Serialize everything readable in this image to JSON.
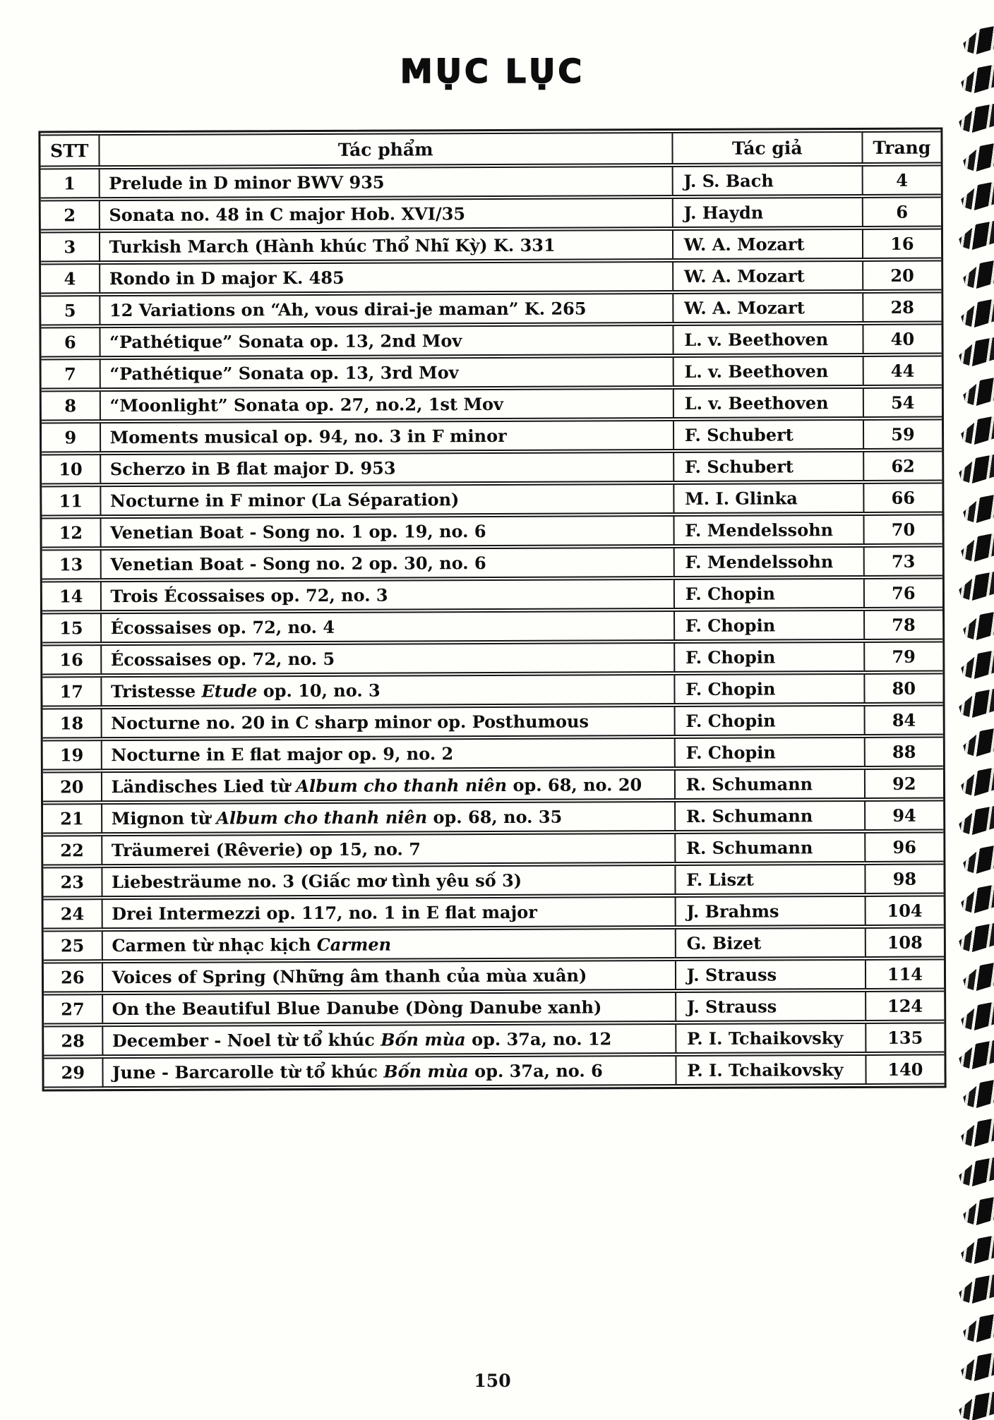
{
  "page": {
    "title": "MỤC LỤC",
    "folio": "150"
  },
  "table": {
    "headers": {
      "stt": "STT",
      "work": "Tác phẩm",
      "author": "Tác giả",
      "page": "Trang"
    },
    "rows": [
      {
        "stt": "1",
        "work": "Prelude in D minor BWV 935",
        "author": "J. S. Bach",
        "page": "4"
      },
      {
        "stt": "2",
        "work": "Sonata no. 48 in C major Hob. XVI/35",
        "author": "J. Haydn",
        "page": "6"
      },
      {
        "stt": "3",
        "work": "Turkish March (Hành khúc Thổ Nhĩ Kỳ) K. 331",
        "author": "W. A. Mozart",
        "page": "16"
      },
      {
        "stt": "4",
        "work": "Rondo in D major K. 485",
        "author": "W. A. Mozart",
        "page": "20"
      },
      {
        "stt": "5",
        "work": "12 Variations on “Ah, vous dirai-je maman” K. 265",
        "author": "W. A. Mozart",
        "page": "28"
      },
      {
        "stt": "6",
        "work": "“Pathétique” Sonata op. 13, 2nd Mov",
        "author": "L. v. Beethoven",
        "page": "40"
      },
      {
        "stt": "7",
        "work": "“Pathétique” Sonata op. 13, 3rd Mov",
        "author": "L. v. Beethoven",
        "page": "44"
      },
      {
        "stt": "8",
        "work": "“Moonlight” Sonata op. 27, no.2, 1st Mov",
        "author": "L. v. Beethoven",
        "page": "54"
      },
      {
        "stt": "9",
        "work": "Moments musical op. 94, no. 3 in F minor",
        "author": "F. Schubert",
        "page": "59"
      },
      {
        "stt": "10",
        "work": "Scherzo in B flat major D. 953",
        "author": "F. Schubert",
        "page": "62"
      },
      {
        "stt": "11",
        "work": "Nocturne in F minor (La Séparation)",
        "author": "M. I. Glinka",
        "page": "66"
      },
      {
        "stt": "12",
        "work": "Venetian Boat - Song no. 1 op. 19, no. 6",
        "author": "F. Mendelssohn",
        "page": "70"
      },
      {
        "stt": "13",
        "work": "Venetian Boat - Song no. 2 op. 30, no. 6",
        "author": "F. Mendelssohn",
        "page": "73"
      },
      {
        "stt": "14",
        "work": "Trois Écossaises op. 72, no. 3",
        "author": "F. Chopin",
        "page": "76"
      },
      {
        "stt": "15",
        "work": "Écossaises op. 72, no. 4",
        "author": "F. Chopin",
        "page": "78"
      },
      {
        "stt": "16",
        "work": "Écossaises op. 72, no. 5",
        "author": "F. Chopin",
        "page": "79"
      },
      {
        "stt": "17",
        "work": "Tristesse *Etude* op. 10, no. 3",
        "author": "F. Chopin",
        "page": "80"
      },
      {
        "stt": "18",
        "work": "Nocturne no. 20 in C sharp minor op. Posthumous",
        "author": "F. Chopin",
        "page": "84"
      },
      {
        "stt": "19",
        "work": "Nocturne in E flat major op. 9, no. 2",
        "author": "F. Chopin",
        "page": "88"
      },
      {
        "stt": "20",
        "work": "Ländisches Lied từ *Album cho thanh niên* op. 68, no. 20",
        "author": "R. Schumann",
        "page": "92"
      },
      {
        "stt": "21",
        "work": "Mignon từ *Album cho thanh niên* op. 68, no. 35",
        "author": "R. Schumann",
        "page": "94"
      },
      {
        "stt": "22",
        "work": "Träumerei (Rêverie) op 15, no. 7",
        "author": "R. Schumann",
        "page": "96"
      },
      {
        "stt": "23",
        "work": "Liebesträume no. 3 (Giấc mơ tình yêu số 3)",
        "author": "F. Liszt",
        "page": "98"
      },
      {
        "stt": "24",
        "work": "Drei Intermezzi op. 117, no. 1 in E flat major",
        "author": "J. Brahms",
        "page": "104"
      },
      {
        "stt": "25",
        "work": "Carmen từ nhạc kịch *Carmen*",
        "author": "G. Bizet",
        "page": "108"
      },
      {
        "stt": "26",
        "work": "Voices of Spring (Những âm thanh của mùa xuân)",
        "author": "J. Strauss",
        "page": "114"
      },
      {
        "stt": "27",
        "work": "On the Beautiful Blue Danube (Dòng Danube xanh)",
        "author": "J. Strauss",
        "page": "124"
      },
      {
        "stt": "28",
        "work": "December - Noel từ tổ khúc *Bốn mùa* op. 37a, no. 12",
        "author": "P. I. Tchaikovsky",
        "page": "135"
      },
      {
        "stt": "29",
        "work": "June - Barcarolle từ tổ khúc *Bốn mùa* op. 37a, no. 6",
        "author": "P. I. Tchaikovsky",
        "page": "140"
      }
    ]
  },
  "decoration": {
    "spiral_marks": 36
  }
}
